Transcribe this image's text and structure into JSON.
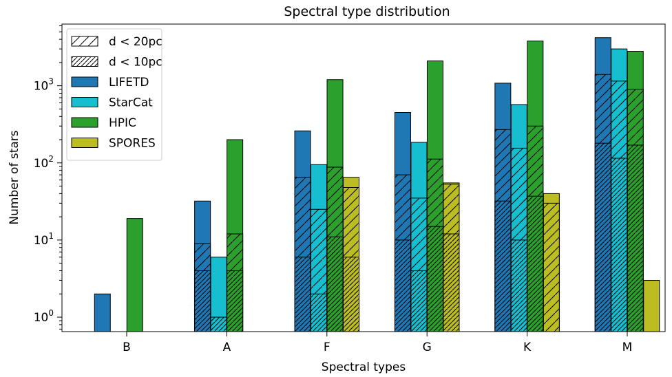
{
  "chart_data": {
    "type": "bar",
    "title": "Spectral type distribution",
    "xlabel": "Spectral types",
    "ylabel": "Number of stars",
    "yscale": "log",
    "ylim": [
      0.65,
      6300
    ],
    "yticks": [
      {
        "value": 1,
        "base": "10",
        "exp": "0"
      },
      {
        "value": 10,
        "base": "10",
        "exp": "1"
      },
      {
        "value": 100,
        "base": "10",
        "exp": "2"
      },
      {
        "value": 1000,
        "base": "10",
        "exp": "3"
      }
    ],
    "categories": [
      "B",
      "A",
      "F",
      "G",
      "K",
      "M"
    ],
    "legend_position": "top-left",
    "hatch_legend": [
      {
        "label": "d < 20pc",
        "density": "sparse"
      },
      {
        "label": "d < 10pc",
        "density": "dense"
      }
    ],
    "series": [
      {
        "name": "LIFETD",
        "color": "#1f77b4",
        "total": [
          2,
          32,
          260,
          450,
          1080,
          4200
        ],
        "d20": [
          null,
          9,
          65,
          70,
          270,
          1400
        ],
        "d10": [
          null,
          4,
          6,
          10,
          32,
          180
        ]
      },
      {
        "name": "StarCat",
        "color": "#17becf",
        "total": [
          null,
          6,
          95,
          185,
          570,
          3000
        ],
        "d20": [
          null,
          null,
          25,
          35,
          155,
          1150
        ],
        "d10": [
          null,
          1,
          2,
          4,
          10,
          115
        ]
      },
      {
        "name": "HPIC",
        "color": "#2ca02c",
        "total": [
          19,
          200,
          1200,
          2100,
          3800,
          2800
        ],
        "d20": [
          null,
          12,
          88,
          112,
          300,
          900
        ],
        "d10": [
          null,
          4,
          11,
          15,
          37,
          170
        ]
      },
      {
        "name": "SPORES",
        "color": "#bcbd22",
        "total": [
          null,
          null,
          65,
          55,
          40,
          3
        ],
        "d20": [
          null,
          null,
          48,
          53,
          30,
          null
        ],
        "d10": [
          null,
          null,
          6,
          12,
          null,
          null
        ]
      }
    ]
  }
}
